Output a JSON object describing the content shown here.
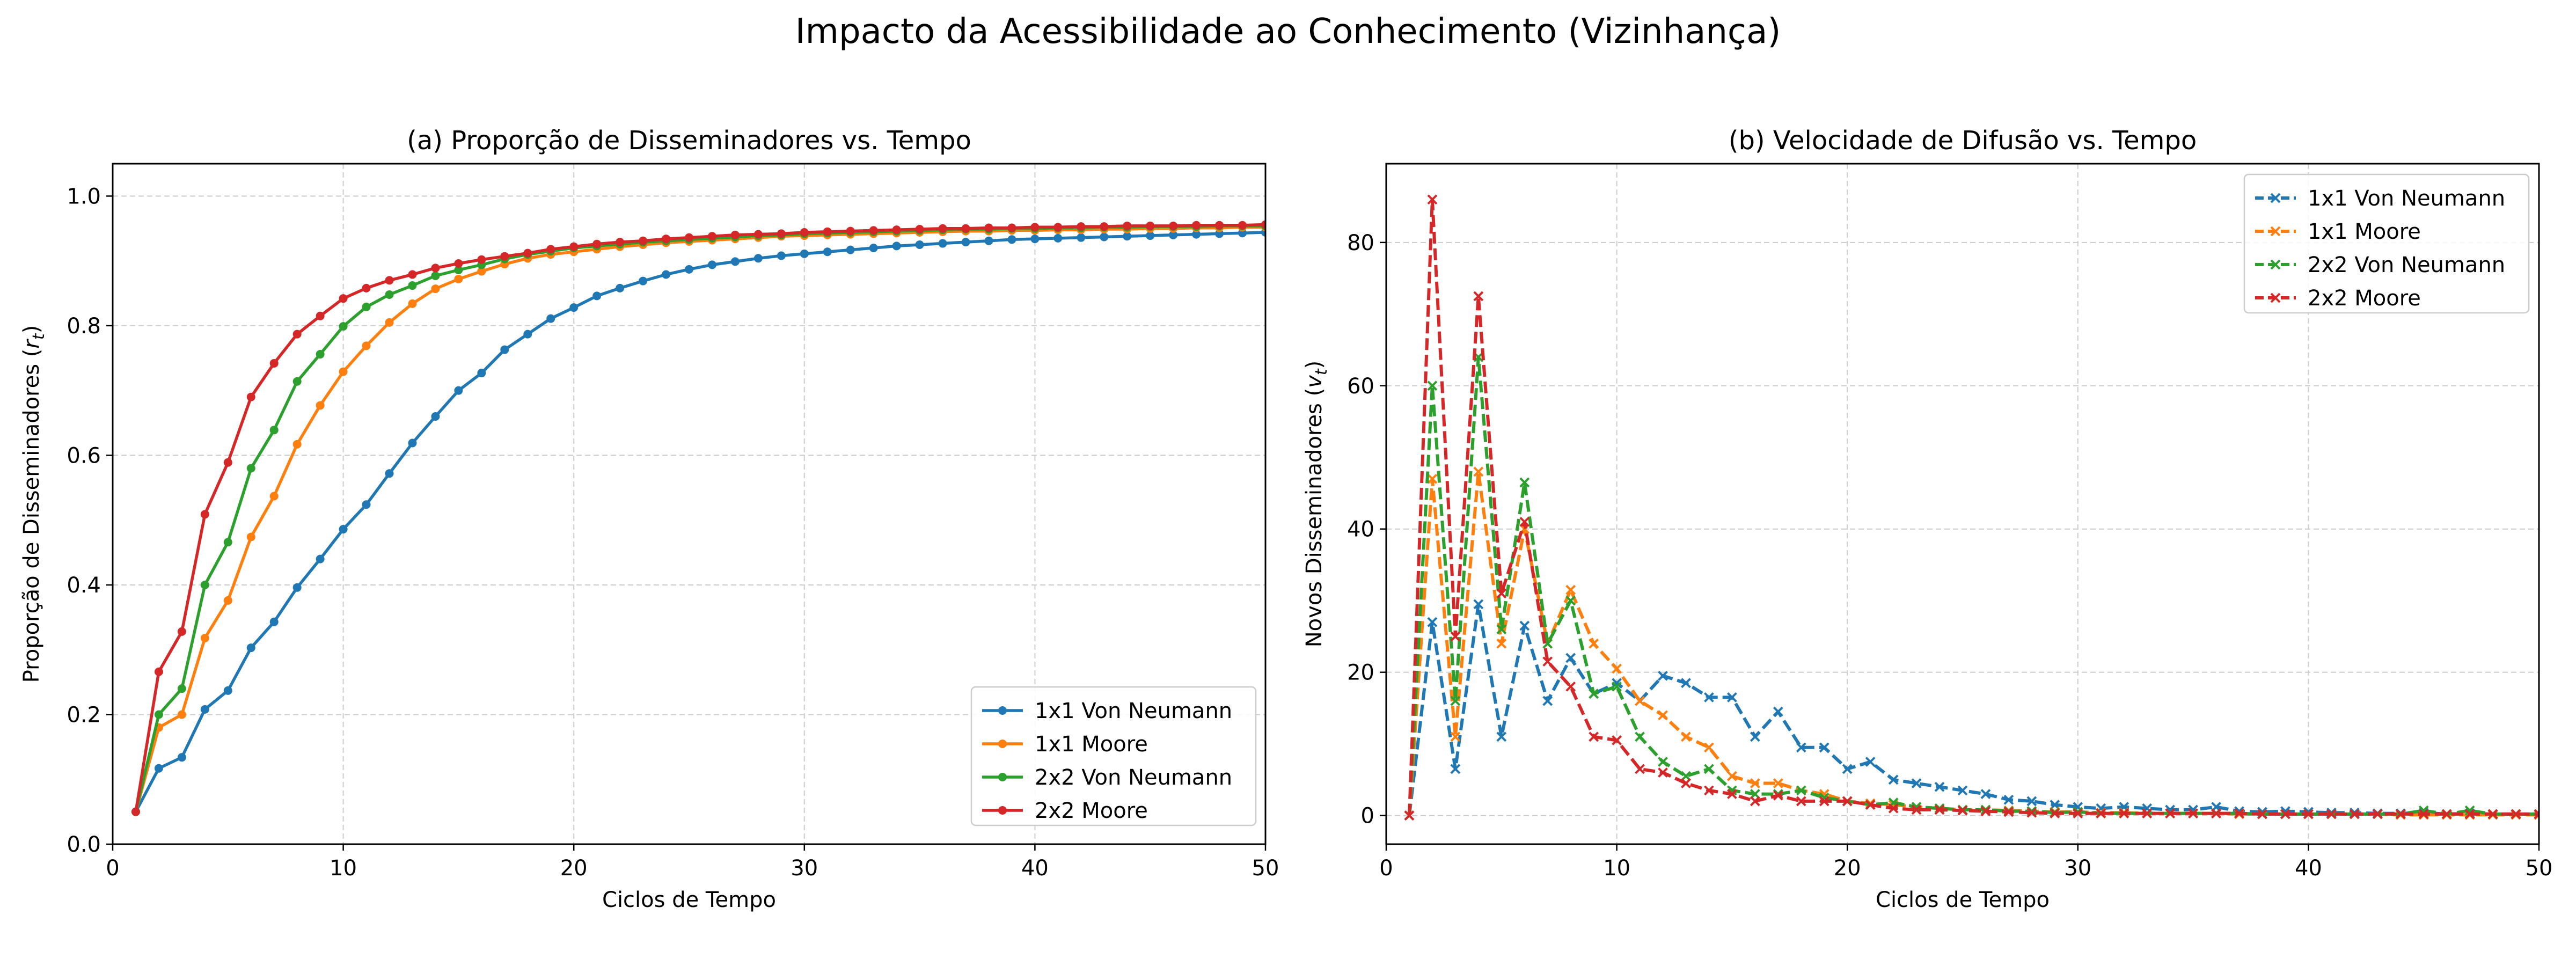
{
  "figure": {
    "title": "Impacto da Acessibilidade ao Conhecimento (Vizinhança)"
  },
  "colors": {
    "1x1 Von Neumann": "#1f77b4",
    "1x1 Moore": "#ff7f0e",
    "2x2 Von Neumann": "#2ca02c",
    "2x2 Moore": "#d62728"
  },
  "chart_data": [
    {
      "type": "line",
      "title": "(a) Proporção de Disseminadores vs. Tempo",
      "xlabel": "Ciclos de Tempo",
      "ylabel": "Proporção de Disseminadores (r_t)",
      "xlim": [
        0,
        50
      ],
      "ylim": [
        0,
        1.05
      ],
      "xticks": [
        0,
        10,
        20,
        30,
        40,
        50
      ],
      "yticks": [
        0.0,
        0.2,
        0.4,
        0.6,
        0.8,
        1.0
      ],
      "xtick_labels": [
        "0",
        "10",
        "20",
        "30",
        "40",
        "50"
      ],
      "ytick_labels": [
        "0.0",
        "0.2",
        "0.4",
        "0.6",
        "0.8",
        "1.0"
      ],
      "grid": true,
      "legend_position": "lower right",
      "marker": "dot",
      "linestyle": "solid",
      "x": [
        1,
        2,
        3,
        4,
        5,
        6,
        7,
        8,
        9,
        10,
        11,
        12,
        13,
        14,
        15,
        16,
        17,
        18,
        19,
        20,
        21,
        22,
        23,
        24,
        25,
        26,
        27,
        28,
        29,
        30,
        31,
        32,
        33,
        34,
        35,
        36,
        37,
        38,
        39,
        40,
        41,
        42,
        43,
        44,
        45,
        46,
        47,
        48,
        49,
        50
      ],
      "series": [
        {
          "name": "1x1 Von Neumann",
          "values": [
            0.05,
            0.117,
            0.134,
            0.208,
            0.237,
            0.303,
            0.343,
            0.396,
            0.44,
            0.486,
            0.524,
            0.572,
            0.619,
            0.66,
            0.7,
            0.727,
            0.763,
            0.787,
            0.811,
            0.828,
            0.846,
            0.858,
            0.869,
            0.879,
            0.887,
            0.894,
            0.899,
            0.904,
            0.908,
            0.911,
            0.914,
            0.917,
            0.92,
            0.923,
            0.925,
            0.927,
            0.929,
            0.931,
            0.933,
            0.934,
            0.935,
            0.936,
            0.937,
            0.938,
            0.939,
            0.94,
            0.941,
            0.942,
            0.943,
            0.944
          ]
        },
        {
          "name": "1x1 Moore",
          "values": [
            0.05,
            0.18,
            0.2,
            0.318,
            0.376,
            0.474,
            0.537,
            0.617,
            0.677,
            0.729,
            0.769,
            0.805,
            0.834,
            0.857,
            0.872,
            0.884,
            0.895,
            0.904,
            0.91,
            0.914,
            0.918,
            0.922,
            0.925,
            0.928,
            0.93,
            0.932,
            0.934,
            0.936,
            0.938,
            0.939,
            0.94,
            0.941,
            0.942,
            0.943,
            0.944,
            0.945,
            0.946,
            0.946,
            0.947,
            0.947,
            0.948,
            0.948,
            0.949,
            0.949,
            0.95,
            0.95,
            0.951,
            0.951,
            0.952,
            0.952
          ]
        },
        {
          "name": "2x2 Von Neumann",
          "values": [
            0.05,
            0.2,
            0.24,
            0.4,
            0.466,
            0.58,
            0.639,
            0.714,
            0.756,
            0.799,
            0.829,
            0.848,
            0.862,
            0.877,
            0.886,
            0.894,
            0.903,
            0.91,
            0.915,
            0.92,
            0.923,
            0.926,
            0.929,
            0.931,
            0.933,
            0.935,
            0.937,
            0.939,
            0.94,
            0.942,
            0.943,
            0.944,
            0.945,
            0.946,
            0.947,
            0.948,
            0.949,
            0.949,
            0.95,
            0.95,
            0.951,
            0.951,
            0.952,
            0.952,
            0.953,
            0.953,
            0.953,
            0.954,
            0.954,
            0.954
          ]
        },
        {
          "name": "2x2 Moore",
          "values": [
            0.05,
            0.266,
            0.328,
            0.509,
            0.589,
            0.69,
            0.742,
            0.787,
            0.815,
            0.842,
            0.858,
            0.87,
            0.879,
            0.889,
            0.896,
            0.902,
            0.907,
            0.912,
            0.918,
            0.922,
            0.926,
            0.929,
            0.931,
            0.934,
            0.936,
            0.938,
            0.94,
            0.941,
            0.942,
            0.944,
            0.945,
            0.946,
            0.947,
            0.948,
            0.949,
            0.95,
            0.95,
            0.951,
            0.951,
            0.952,
            0.952,
            0.953,
            0.953,
            0.954,
            0.954,
            0.954,
            0.955,
            0.955,
            0.955,
            0.956
          ]
        }
      ]
    },
    {
      "type": "line",
      "title": "(b) Velocidade de Difusão vs. Tempo",
      "xlabel": "Ciclos de Tempo",
      "ylabel": "Novos Disseminadores (v_t)",
      "xlim": [
        0,
        50
      ],
      "ylim": [
        -4,
        91
      ],
      "xticks": [
        0,
        10,
        20,
        30,
        40,
        50
      ],
      "yticks": [
        0,
        20,
        40,
        60,
        80
      ],
      "xtick_labels": [
        "0",
        "10",
        "20",
        "30",
        "40",
        "50"
      ],
      "ytick_labels": [
        "0",
        "20",
        "40",
        "60",
        "80"
      ],
      "grid": true,
      "legend_position": "upper right",
      "marker": "x",
      "linestyle": "dashed",
      "x": [
        1,
        2,
        3,
        4,
        5,
        6,
        7,
        8,
        9,
        10,
        11,
        12,
        13,
        14,
        15,
        16,
        17,
        18,
        19,
        20,
        21,
        22,
        23,
        24,
        25,
        26,
        27,
        28,
        29,
        30,
        31,
        32,
        33,
        34,
        35,
        36,
        37,
        38,
        39,
        40,
        41,
        42,
        43,
        44,
        45,
        46,
        47,
        48,
        49,
        50
      ],
      "series": [
        {
          "name": "1x1 Von Neumann",
          "values": [
            0,
            27,
            6.5,
            29.5,
            11,
            26.5,
            16,
            22,
            17,
            18.5,
            16,
            19.5,
            18.5,
            16.5,
            16.5,
            11,
            14.5,
            9.5,
            9.5,
            6.5,
            7.5,
            5,
            4.5,
            4,
            3.5,
            3,
            2.2,
            2,
            1.5,
            1.2,
            1,
            1.2,
            1,
            0.8,
            0.8,
            1.2,
            0.6,
            0.5,
            0.6,
            0.5,
            0.4,
            0.4,
            0.3,
            0.3,
            0.4,
            0.2,
            0.3,
            0.2,
            0.2,
            0.2
          ]
        },
        {
          "name": "1x1 Moore",
          "values": [
            0,
            47,
            11,
            48,
            24,
            40,
            24,
            31.5,
            24,
            20.5,
            16,
            14,
            11,
            9.5,
            5.5,
            4.5,
            4.5,
            3.5,
            3,
            2,
            1.7,
            1.5,
            1.2,
            1,
            0.8,
            0.8,
            0.7,
            0.6,
            0.5,
            0.5,
            0.4,
            0.4,
            0.3,
            0.3,
            0.3,
            0.3,
            0.2,
            0.2,
            0.2,
            0.2,
            0.2,
            0.2,
            0.2,
            0.1,
            0.1,
            0.1,
            0.1,
            0.1,
            0.1,
            0.1
          ]
        },
        {
          "name": "2x2 Von Neumann",
          "values": [
            0,
            60,
            16,
            64,
            26,
            46.5,
            24,
            30,
            17,
            18,
            11,
            7.5,
            5.5,
            6.5,
            3.5,
            3,
            3,
            3.5,
            2.5,
            2,
            1.5,
            1.8,
            1.2,
            1,
            0.8,
            0.8,
            0.6,
            0.6,
            0.4,
            0.5,
            0.3,
            0.3,
            0.3,
            0.3,
            0.3,
            0.3,
            0.3,
            0.2,
            0.2,
            0.2,
            0.2,
            0.2,
            0.2,
            0.2,
            0.7,
            0.2,
            0.7,
            0.2,
            0.2,
            0.2
          ]
        },
        {
          "name": "2x2 Moore",
          "values": [
            0,
            86,
            25,
            72.5,
            31,
            41,
            21.5,
            18,
            11,
            10.5,
            6.5,
            6,
            4.5,
            3.5,
            3,
            2,
            2.8,
            2,
            2,
            2,
            1.5,
            1,
            0.8,
            0.8,
            0.7,
            0.6,
            0.5,
            0.4,
            0.3,
            0.3,
            0.3,
            0.3,
            0.3,
            0.3,
            0.3,
            0.3,
            0.3,
            0.2,
            0.2,
            0.2,
            0.2,
            0.2,
            0.2,
            0.2,
            0.2,
            0.2,
            0.2,
            0.2,
            0.2,
            0.2
          ]
        }
      ]
    }
  ]
}
